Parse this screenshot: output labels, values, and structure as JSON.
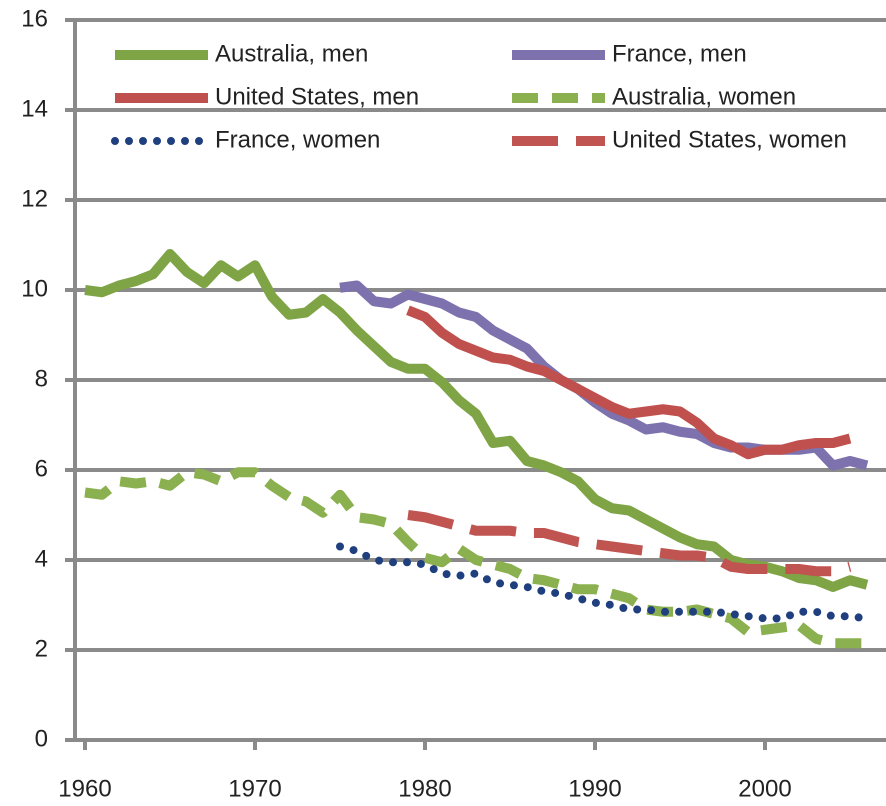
{
  "chart_data": {
    "type": "line",
    "x": [
      1960,
      1961,
      1962,
      1963,
      1964,
      1965,
      1966,
      1967,
      1968,
      1969,
      1970,
      1971,
      1972,
      1973,
      1974,
      1975,
      1976,
      1977,
      1978,
      1979,
      1980,
      1981,
      1982,
      1983,
      1984,
      1985,
      1986,
      1987,
      1988,
      1989,
      1990,
      1991,
      1992,
      1993,
      1994,
      1995,
      1996,
      1997,
      1998,
      1999,
      2000,
      2001,
      2002,
      2003,
      2004,
      2005,
      2006
    ],
    "xlim": [
      1960,
      2007
    ],
    "xticks": [
      1960,
      1970,
      1980,
      1990,
      2000
    ],
    "ylim": [
      0,
      16
    ],
    "yticks": [
      0,
      2,
      4,
      6,
      8,
      10,
      12,
      14,
      16
    ],
    "grid": true,
    "legend": "top",
    "series": [
      {
        "name": "Australia, men",
        "color": "#7ea446",
        "style": "solid",
        "values": [
          10.0,
          9.95,
          10.1,
          10.2,
          10.35,
          10.8,
          10.4,
          10.15,
          10.55,
          10.3,
          10.55,
          9.85,
          9.45,
          9.5,
          9.8,
          9.5,
          9.1,
          8.75,
          8.4,
          8.25,
          8.25,
          7.95,
          7.55,
          7.25,
          6.6,
          6.65,
          6.2,
          6.1,
          5.95,
          5.75,
          5.35,
          5.15,
          5.1,
          4.9,
          4.7,
          4.5,
          4.35,
          4.3,
          4.0,
          3.9,
          3.85,
          3.75,
          3.6,
          3.55,
          3.4,
          3.55,
          3.45
        ]
      },
      {
        "name": "France, men",
        "color": "#7d72ad",
        "style": "solid",
        "values": [
          null,
          null,
          null,
          null,
          null,
          null,
          null,
          null,
          null,
          null,
          null,
          null,
          null,
          null,
          null,
          10.05,
          10.1,
          9.75,
          9.7,
          9.9,
          9.8,
          9.7,
          9.5,
          9.4,
          9.1,
          8.9,
          8.7,
          8.3,
          8.0,
          7.8,
          7.5,
          7.25,
          7.1,
          6.9,
          6.95,
          6.85,
          6.8,
          6.6,
          6.5,
          6.5,
          6.45,
          6.45,
          6.45,
          6.5,
          6.1,
          6.2,
          6.1
        ]
      },
      {
        "name": "United States, men",
        "color": "#c0504d",
        "style": "solid",
        "values": [
          null,
          null,
          null,
          null,
          null,
          null,
          null,
          null,
          null,
          null,
          null,
          null,
          null,
          null,
          null,
          null,
          null,
          null,
          null,
          9.55,
          9.4,
          9.05,
          8.8,
          8.65,
          8.5,
          8.45,
          8.3,
          8.2,
          8.0,
          7.8,
          7.6,
          7.4,
          7.25,
          7.3,
          7.35,
          7.3,
          7.05,
          6.7,
          6.55,
          6.35,
          6.45,
          6.45,
          6.55,
          6.6,
          6.6,
          6.7,
          null
        ]
      },
      {
        "name": "Australia, women",
        "color": "#8bb04f",
        "style": "dashed",
        "values": [
          5.5,
          5.45,
          5.75,
          5.7,
          5.75,
          5.65,
          5.95,
          5.9,
          5.75,
          5.95,
          5.95,
          5.65,
          5.4,
          5.3,
          5.05,
          5.45,
          4.95,
          4.9,
          4.8,
          4.4,
          4.05,
          3.95,
          4.25,
          4.0,
          3.9,
          3.8,
          3.6,
          3.55,
          3.45,
          3.35,
          3.35,
          3.25,
          3.15,
          2.9,
          2.85,
          2.85,
          2.9,
          2.8,
          2.7,
          2.4,
          2.45,
          2.5,
          2.55,
          2.25,
          2.15,
          2.15,
          2.15
        ]
      },
      {
        "name": "France, women",
        "color": "#1f3f7f",
        "style": "dotted",
        "values": [
          null,
          null,
          null,
          null,
          null,
          null,
          null,
          null,
          null,
          null,
          null,
          null,
          null,
          null,
          null,
          4.3,
          4.2,
          4.0,
          3.95,
          3.95,
          3.9,
          3.7,
          3.65,
          3.7,
          3.5,
          3.45,
          3.4,
          3.3,
          3.25,
          3.15,
          3.05,
          3.0,
          2.9,
          2.9,
          2.85,
          2.85,
          2.85,
          2.85,
          2.8,
          2.75,
          2.7,
          2.7,
          2.85,
          2.85,
          2.75,
          2.75,
          2.7
        ]
      },
      {
        "name": "United States, women",
        "color": "#bf5450",
        "style": "long-dash",
        "values": [
          null,
          null,
          null,
          null,
          null,
          null,
          null,
          null,
          null,
          null,
          null,
          null,
          null,
          null,
          null,
          null,
          null,
          null,
          null,
          5.0,
          4.95,
          4.85,
          4.75,
          4.65,
          4.65,
          4.65,
          4.6,
          4.6,
          4.5,
          4.4,
          4.35,
          4.3,
          4.25,
          4.2,
          4.15,
          4.1,
          4.1,
          4.05,
          3.85,
          3.8,
          3.8,
          3.8,
          3.8,
          3.75,
          3.75,
          3.85,
          null
        ]
      }
    ]
  }
}
